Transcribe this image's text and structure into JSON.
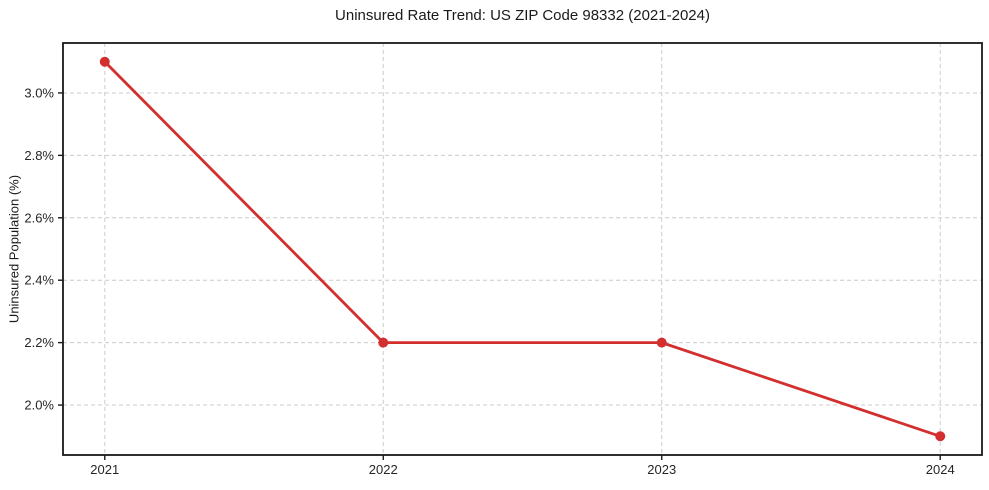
{
  "chart_data": {
    "type": "line",
    "title": "Uninsured Rate Trend: US ZIP Code 98332 (2021-2024)",
    "xlabel": "",
    "ylabel": "Uninsured Population (%)",
    "x": [
      2021,
      2022,
      2023,
      2024
    ],
    "series": [
      {
        "name": "uninsured-rate",
        "values": [
          3.1,
          2.2,
          2.2,
          1.9
        ],
        "color": "#d32f2f"
      }
    ],
    "xlim": [
      2020.85,
      2024.15
    ],
    "ylim": [
      1.84,
      3.16
    ],
    "x_ticks": [
      2021,
      2022,
      2023,
      2024
    ],
    "x_tick_labels": [
      "2021",
      "2022",
      "2023",
      "2024"
    ],
    "y_ticks": [
      2.0,
      2.2,
      2.4,
      2.6,
      2.8,
      3.0
    ],
    "y_tick_labels": [
      "2.0%",
      "2.2%",
      "2.4%",
      "2.6%",
      "2.8%",
      "3.0%"
    ],
    "grid": true,
    "grid_color": "#cccccc",
    "axis_color": "#1a1a1a",
    "background_color": "#ffffff",
    "legend": "none",
    "line_width": 2.8,
    "marker": "circle",
    "marker_radius": 5
  }
}
